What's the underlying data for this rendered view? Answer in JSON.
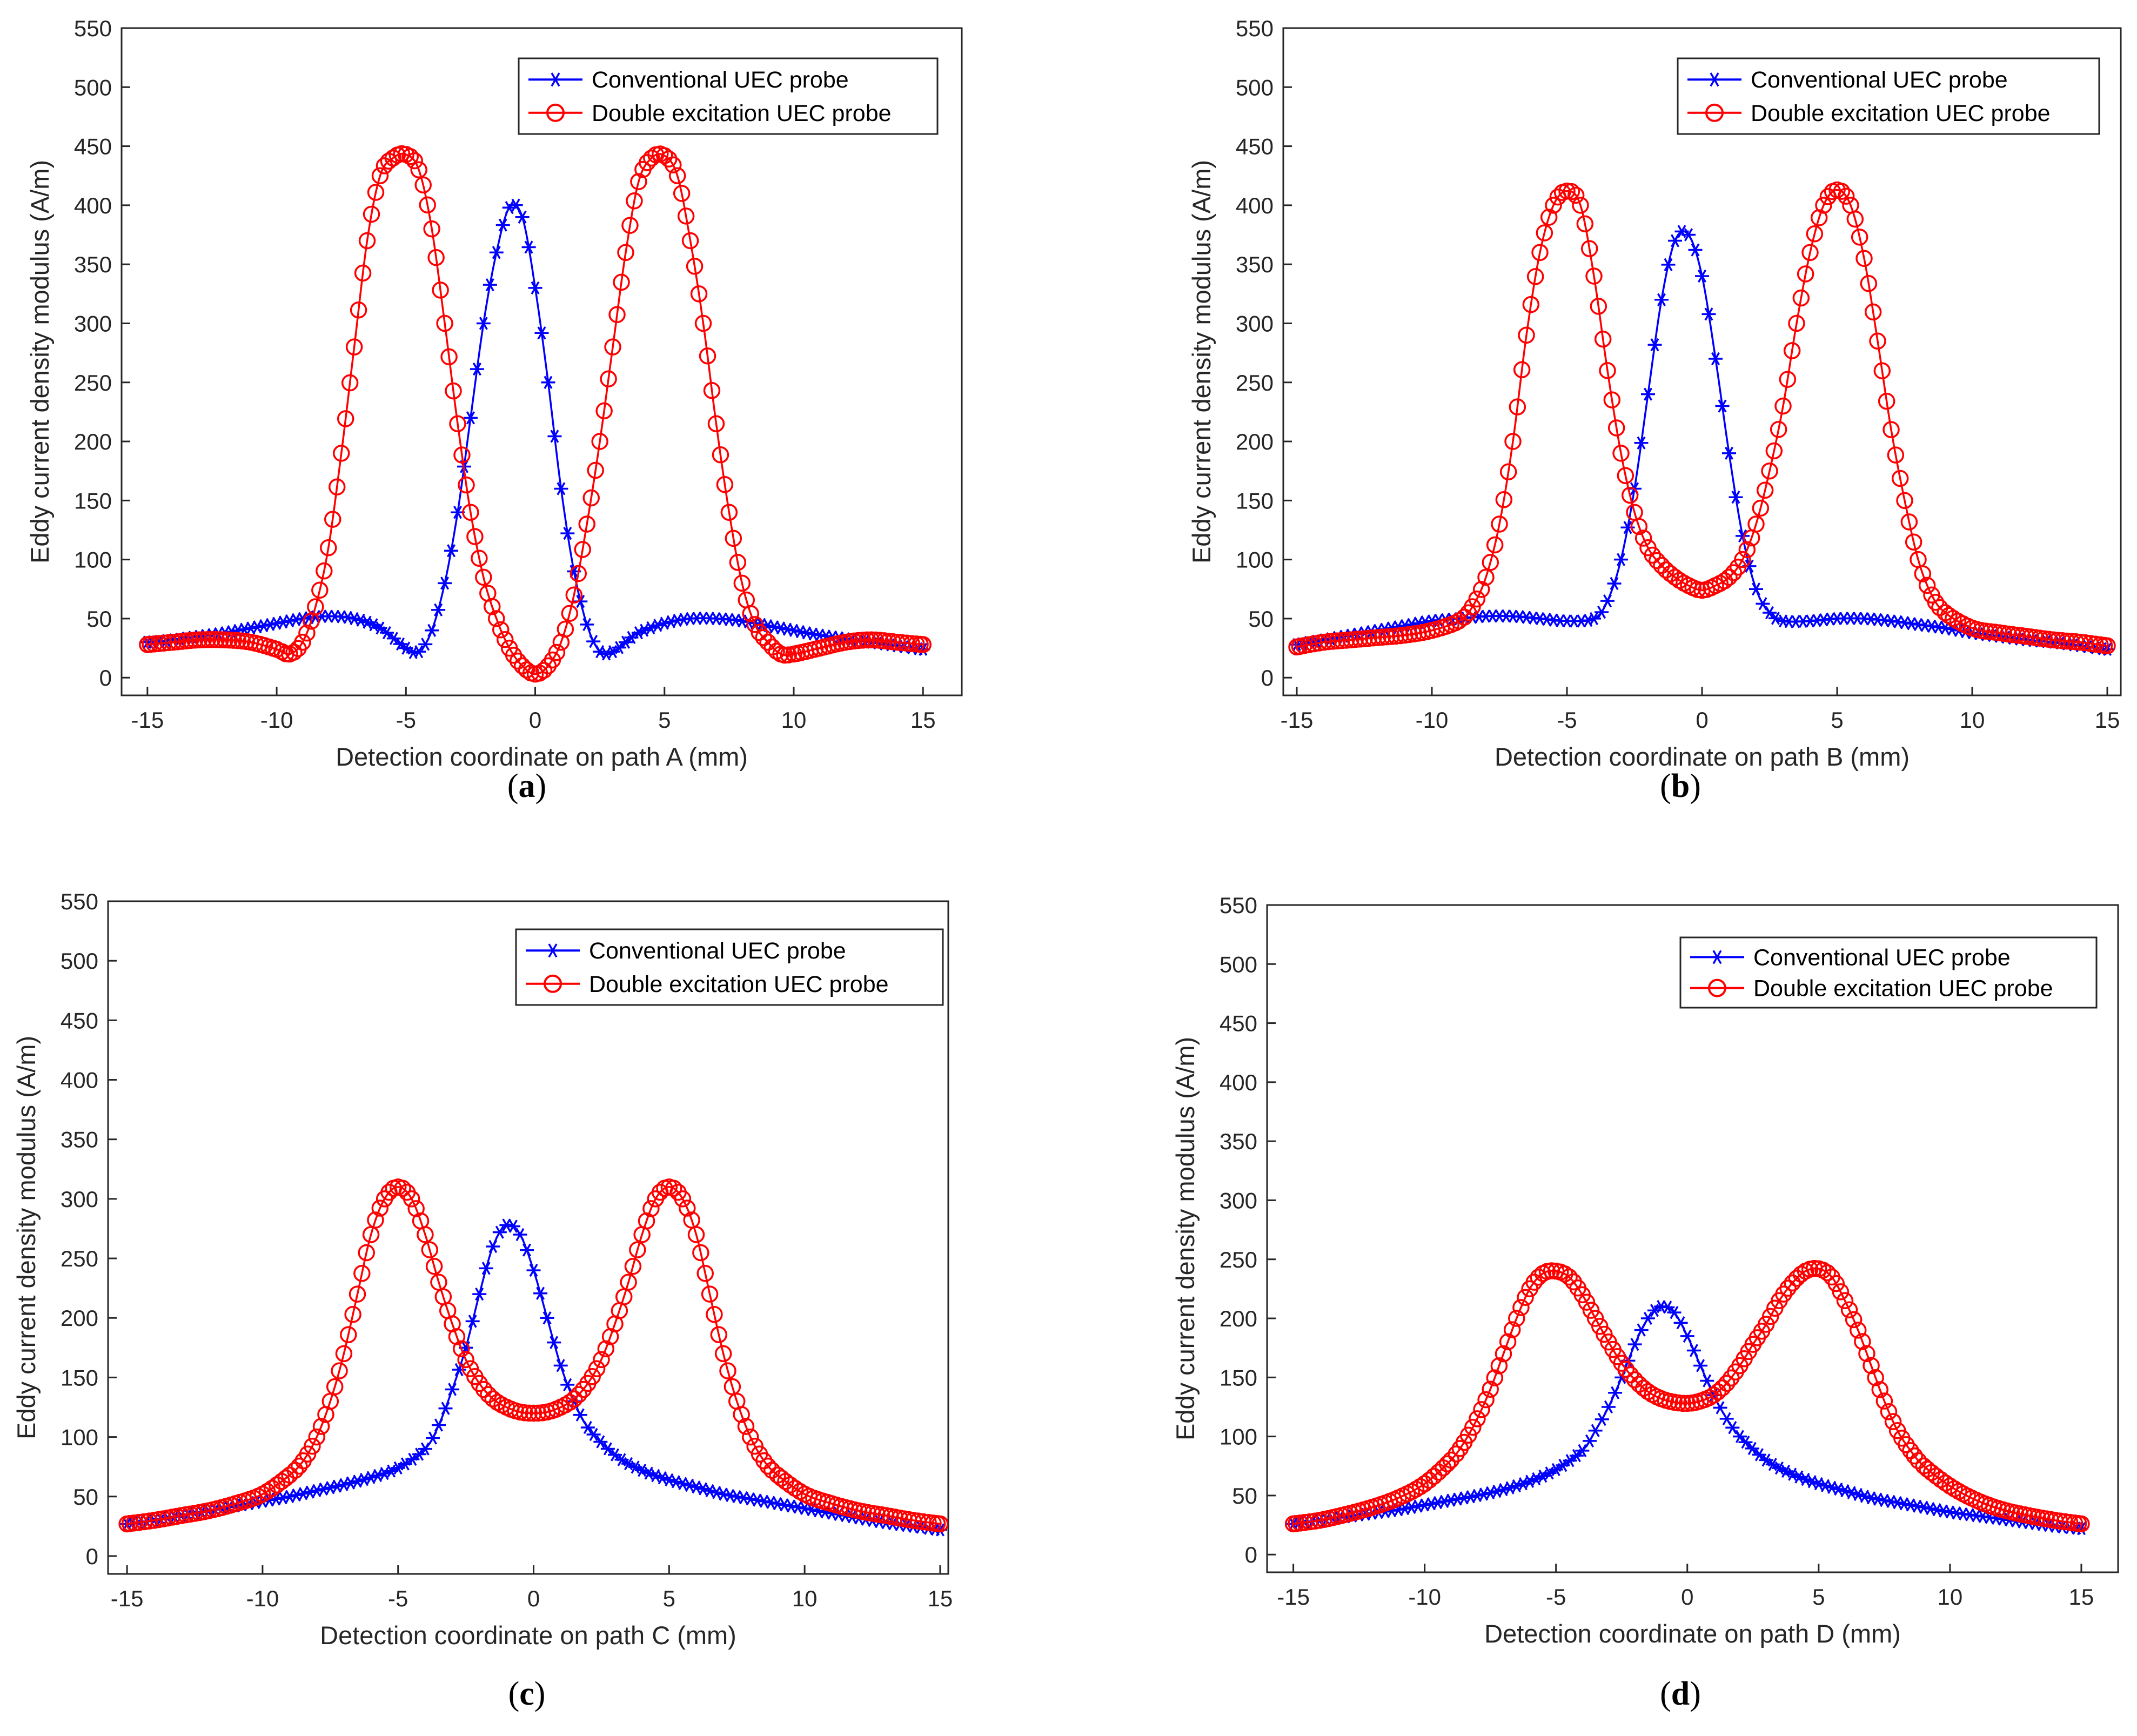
{
  "colors": {
    "conventional": "#0000ff",
    "double": "#ff0000",
    "axis": "#262626"
  },
  "chart_data": [
    {
      "type": "line",
      "panel_label": "(a)",
      "panel_letter": "a",
      "xlabel": "Detection coordinate on path A (mm)",
      "ylabel": "Eddy current density modulus (A/m)",
      "xlim": [
        -16,
        16.5
      ],
      "ylim": [
        -15,
        550
      ],
      "xticks": [
        -15,
        -10,
        -5,
        0,
        5,
        10,
        15
      ],
      "yticks": [
        0,
        50,
        100,
        150,
        200,
        250,
        300,
        350,
        400,
        450,
        500,
        550
      ],
      "legend": [
        "Conventional UEC probe",
        "Double excitation UEC probe"
      ],
      "legend_position": "top-right",
      "series": [
        {
          "name": "Conventional UEC probe",
          "marker": "asterisk",
          "x": [
            -15,
            -14,
            -13,
            -12,
            -11,
            -10,
            -9,
            -8,
            -7,
            -6,
            -5,
            -4.5,
            -4,
            -3.5,
            -3,
            -2.5,
            -2,
            -1.5,
            -1,
            -0.5,
            0,
            0.5,
            1,
            1.5,
            2,
            2.5,
            3,
            3.5,
            4,
            5,
            6,
            7,
            8,
            9,
            10,
            11,
            12,
            13,
            14,
            15
          ],
          "y": [
            30,
            32,
            35,
            38,
            42,
            46,
            50,
            52,
            50,
            42,
            25,
            22,
            40,
            80,
            140,
            220,
            300,
            360,
            398,
            390,
            330,
            250,
            160,
            90,
            45,
            22,
            22,
            30,
            38,
            46,
            50,
            50,
            48,
            44,
            40,
            36,
            33,
            30,
            27,
            24
          ]
        },
        {
          "name": "Double excitation UEC probe",
          "marker": "circle",
          "x": [
            -15,
            -14,
            -13,
            -12,
            -11,
            -10,
            -9.5,
            -9,
            -8.5,
            -8,
            -7.5,
            -7,
            -6.5,
            -6,
            -5.5,
            -5,
            -4.5,
            -4,
            -3.5,
            -3,
            -2.5,
            -2,
            -1.5,
            -1,
            -0.5,
            0,
            0.5,
            1,
            1.5,
            2,
            2.5,
            3,
            3.5,
            4,
            4.5,
            5,
            5.5,
            6,
            6.5,
            7,
            7.5,
            8,
            8.5,
            9,
            9.5,
            10,
            11,
            12,
            13,
            14,
            15
          ],
          "y": [
            28,
            30,
            32,
            32,
            30,
            24,
            20,
            30,
            60,
            110,
            190,
            280,
            370,
            425,
            440,
            443,
            430,
            380,
            300,
            215,
            140,
            85,
            50,
            25,
            10,
            3,
            10,
            30,
            70,
            130,
            200,
            280,
            360,
            420,
            440,
            442,
            425,
            370,
            300,
            215,
            140,
            80,
            45,
            30,
            20,
            20,
            25,
            30,
            32,
            30,
            28
          ]
        }
      ]
    },
    {
      "type": "line",
      "panel_label": "(b)",
      "panel_letter": "b",
      "xlabel": "Detection coordinate on path B (mm)",
      "ylabel": "Eddy current density modulus (A/m)",
      "xlim": [
        -15.5,
        15.5
      ],
      "ylim": [
        -15,
        550
      ],
      "xticks": [
        -15,
        -10,
        -5,
        0,
        5,
        10,
        15
      ],
      "yticks": [
        0,
        50,
        100,
        150,
        200,
        250,
        300,
        350,
        400,
        450,
        500,
        550
      ],
      "legend": [
        "Conventional UEC probe",
        "Double excitation UEC probe"
      ],
      "legend_position": "top-right",
      "series": [
        {
          "name": "Conventional UEC probe",
          "marker": "asterisk",
          "x": [
            -15,
            -14,
            -13,
            -12,
            -11,
            -10,
            -9,
            -8,
            -7,
            -6,
            -5,
            -4,
            -3.5,
            -3,
            -2.5,
            -2,
            -1.5,
            -1,
            -0.5,
            0,
            0.5,
            1,
            1.5,
            2,
            2.5,
            3,
            4,
            5,
            6,
            7,
            8,
            9,
            10,
            11,
            12,
            13,
            14,
            15
          ],
          "y": [
            28,
            32,
            36,
            40,
            44,
            48,
            50,
            52,
            52,
            50,
            48,
            50,
            65,
            100,
            160,
            240,
            320,
            370,
            375,
            340,
            270,
            190,
            120,
            75,
            55,
            48,
            48,
            50,
            50,
            48,
            45,
            42,
            38,
            35,
            32,
            30,
            27,
            24
          ]
        },
        {
          "name": "Double excitation UEC probe",
          "marker": "circle",
          "x": [
            -15,
            -14,
            -13,
            -12,
            -11,
            -10,
            -9,
            -8.5,
            -8,
            -7.5,
            -7,
            -6.5,
            -6,
            -5.5,
            -5,
            -4.5,
            -4,
            -3.5,
            -3,
            -2.5,
            -2,
            -1.5,
            -1,
            -0.5,
            0,
            0.5,
            1,
            1.5,
            2,
            2.5,
            3,
            3.5,
            4,
            4.5,
            5,
            5.5,
            6,
            6.5,
            7,
            7.5,
            8,
            8.5,
            9,
            10,
            11,
            12,
            13,
            14,
            15
          ],
          "y": [
            26,
            30,
            32,
            34,
            36,
            40,
            48,
            60,
            85,
            130,
            200,
            290,
            360,
            400,
            412,
            400,
            340,
            260,
            190,
            140,
            110,
            95,
            85,
            78,
            74,
            78,
            85,
            100,
            130,
            175,
            230,
            300,
            360,
            400,
            413,
            400,
            355,
            285,
            210,
            150,
            100,
            70,
            55,
            42,
            38,
            35,
            32,
            30,
            27
          ]
        }
      ]
    },
    {
      "type": "line",
      "panel_label": "(c)",
      "panel_letter": "c",
      "xlabel": "Detection coordinate on path C (mm)",
      "ylabel": "Eddy current density modulus (A/m)",
      "xlim": [
        -15.7,
        15.3
      ],
      "ylim": [
        -15,
        550
      ],
      "xticks": [
        -15,
        -10,
        -5,
        0,
        5,
        10,
        15
      ],
      "yticks": [
        0,
        50,
        100,
        150,
        200,
        250,
        300,
        350,
        400,
        450,
        500,
        550
      ],
      "legend": [
        "Conventional UEC probe",
        "Double excitation UEC probe"
      ],
      "legend_position": "top-right",
      "series": [
        {
          "name": "Conventional UEC probe",
          "marker": "asterisk",
          "x": [
            -15,
            -14,
            -13,
            -12,
            -11,
            -10,
            -9,
            -8,
            -7,
            -6,
            -5,
            -4,
            -3.5,
            -3,
            -2.5,
            -2,
            -1.5,
            -1,
            -0.5,
            0,
            0.5,
            1,
            1.5,
            2,
            3,
            4,
            5,
            6,
            7,
            8,
            9,
            10,
            11,
            12,
            13,
            14,
            15
          ],
          "y": [
            27,
            30,
            34,
            38,
            42,
            46,
            50,
            55,
            60,
            66,
            74,
            90,
            110,
            140,
            175,
            220,
            260,
            278,
            270,
            240,
            200,
            160,
            130,
            108,
            85,
            72,
            64,
            58,
            52,
            48,
            44,
            40,
            36,
            32,
            28,
            25,
            22
          ]
        },
        {
          "name": "Double excitation UEC probe",
          "marker": "circle",
          "x": [
            -15,
            -14,
            -13,
            -12,
            -11,
            -10,
            -9,
            -8.5,
            -8,
            -7.5,
            -7,
            -6.5,
            -6,
            -5.5,
            -5,
            -4.5,
            -4,
            -3.5,
            -3,
            -2.5,
            -2,
            -1.5,
            -1,
            -0.5,
            0,
            0.5,
            1,
            1.5,
            2,
            2.5,
            3,
            3.5,
            4,
            4.5,
            5,
            5.5,
            6,
            6.5,
            7,
            7.5,
            8,
            8.5,
            9,
            10,
            11,
            12,
            13,
            14,
            15
          ],
          "y": [
            27,
            30,
            34,
            38,
            44,
            52,
            68,
            80,
            100,
            130,
            170,
            220,
            270,
            300,
            310,
            300,
            270,
            230,
            195,
            165,
            145,
            132,
            125,
            121,
            120,
            121,
            125,
            132,
            145,
            165,
            195,
            230,
            270,
            300,
            310,
            300,
            270,
            220,
            170,
            130,
            100,
            80,
            68,
            52,
            44,
            38,
            34,
            30,
            27
          ]
        }
      ]
    },
    {
      "type": "line",
      "panel_label": "(d)",
      "panel_letter": "d",
      "xlabel": "Detection coordinate on path D (mm)",
      "ylabel": "Eddy current density modulus (A/m)",
      "xlim": [
        -16,
        16.4
      ],
      "ylim": [
        -15,
        550
      ],
      "xticks": [
        -15,
        -10,
        -5,
        0,
        5,
        10,
        15
      ],
      "yticks": [
        0,
        50,
        100,
        150,
        200,
        250,
        300,
        350,
        400,
        450,
        500,
        550
      ],
      "legend": [
        "Conventional UEC probe",
        "Double excitation UEC probe"
      ],
      "legend_position": "top-right",
      "series": [
        {
          "name": "Conventional UEC probe",
          "marker": "asterisk",
          "x": [
            -15,
            -14,
            -13,
            -12,
            -11,
            -10,
            -9,
            -8,
            -7,
            -6,
            -5,
            -4,
            -3.5,
            -3,
            -2.5,
            -2,
            -1.5,
            -1,
            -0.5,
            0,
            0.5,
            1,
            1.5,
            2,
            3,
            4,
            5,
            6,
            7,
            8,
            9,
            10,
            11,
            12,
            13,
            14,
            15
          ],
          "y": [
            26,
            29,
            32,
            35,
            38,
            42,
            46,
            50,
            55,
            62,
            72,
            88,
            105,
            125,
            150,
            178,
            200,
            210,
            205,
            185,
            160,
            135,
            115,
            100,
            80,
            68,
            60,
            54,
            48,
            44,
            40,
            36,
            33,
            30,
            27,
            24,
            22
          ]
        },
        {
          "name": "Double excitation UEC probe",
          "marker": "circle",
          "x": [
            -15,
            -14,
            -13,
            -12,
            -11,
            -10,
            -9,
            -8.5,
            -8,
            -7.5,
            -7,
            -6.5,
            -6,
            -5.5,
            -5,
            -4.5,
            -4,
            -3.5,
            -3,
            -2.5,
            -2,
            -1.5,
            -1,
            -0.5,
            0,
            0.5,
            1,
            1.5,
            2,
            2.5,
            3,
            3.5,
            4,
            4.5,
            5,
            5.5,
            6,
            6.5,
            7,
            7.5,
            8,
            8.5,
            9,
            10,
            11,
            12,
            13,
            14,
            15
          ],
          "y": [
            26,
            29,
            34,
            40,
            48,
            60,
            80,
            95,
            115,
            140,
            170,
            200,
            225,
            238,
            240,
            235,
            220,
            200,
            180,
            162,
            148,
            138,
            132,
            129,
            128,
            130,
            135,
            145,
            160,
            178,
            195,
            215,
            230,
            240,
            242,
            235,
            215,
            190,
            160,
            130,
            105,
            88,
            75,
            58,
            46,
            38,
            33,
            29,
            26
          ]
        }
      ]
    }
  ]
}
